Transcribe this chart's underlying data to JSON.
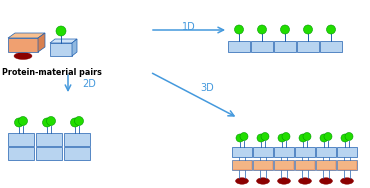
{
  "bg_color": "#ffffff",
  "blue_light": "#b8d4f0",
  "blue_lighter": "#d0e4f8",
  "blue_border": "#2060b0",
  "green": "#22dd00",
  "green_dark": "#009900",
  "red_dark": "#8b0000",
  "salmon": "#f0a070",
  "orange_light": "#f8c898",
  "arrow_color": "#4499dd",
  "label_1d": "1D",
  "label_2d": "2D",
  "label_3d": "3D",
  "label_pairs": "Protein-material pairs"
}
